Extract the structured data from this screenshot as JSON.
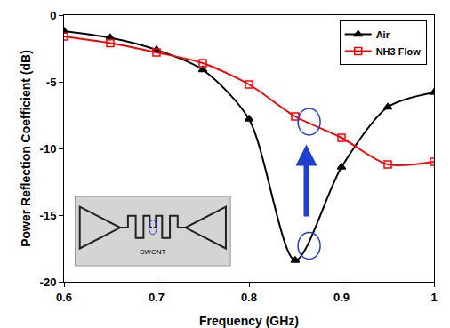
{
  "chart_data": {
    "type": "line",
    "x": [
      0.6,
      0.65,
      0.7,
      0.75,
      0.8,
      0.85,
      0.9,
      0.95,
      1.0
    ],
    "series": [
      {
        "name": "Air",
        "color": "#000000",
        "marker": "triangle-up",
        "line_style": "solid",
        "values": [
          -1.2,
          -1.7,
          -2.6,
          -4.1,
          -7.8,
          -18.4,
          -11.4,
          -6.9,
          -5.8
        ]
      },
      {
        "name": "NH3 Flow",
        "color": "#ff0000",
        "marker": "square-open",
        "line_style": "solid",
        "values": [
          -1.6,
          -2.1,
          -2.8,
          -3.6,
          -5.2,
          -7.6,
          -9.2,
          -11.2,
          -11.0
        ]
      }
    ],
    "xlabel": "Frequency (GHz)",
    "ylabel": "Power Reflection Coefficient (dB)",
    "xlim": [
      0.6,
      1
    ],
    "ylim": [
      -20,
      0
    ],
    "xticks": [
      0.6,
      0.7,
      0.8,
      0.9,
      1
    ],
    "yticks": [
      -20,
      -15,
      -10,
      -5,
      0
    ],
    "grid": false,
    "legend": "upper right",
    "annotations": [
      "SWCNT"
    ]
  }
}
